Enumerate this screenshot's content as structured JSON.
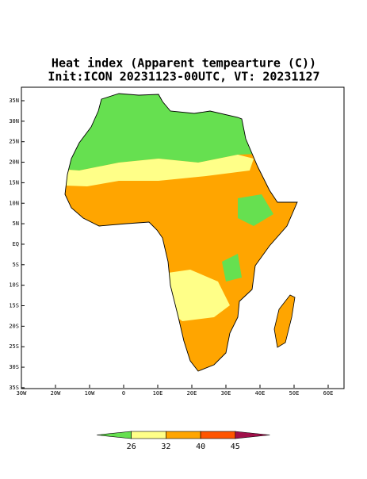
{
  "title": [
    "Heat index (Apparent tempearture (C))",
    "Init:ICON 20231123-00UTC, VT: 20231127"
  ],
  "map": {
    "lat_labels": [
      "35N",
      "30N",
      "25N",
      "20N",
      "15N",
      "10N",
      "5N",
      "EQ",
      "5S",
      "10S",
      "15S",
      "20S",
      "25S",
      "30S",
      "35S"
    ],
    "lon_labels": [
      "30W",
      "20W",
      "10W",
      "0",
      "10E",
      "20E",
      "30E",
      "40E",
      "50E",
      "60E"
    ]
  },
  "colorbar": {
    "levels": [
      26,
      32,
      40,
      45
    ],
    "colors": [
      "#66e050",
      "#ffff88",
      "#ffa500",
      "#ff5500",
      "#a0104a"
    ]
  }
}
